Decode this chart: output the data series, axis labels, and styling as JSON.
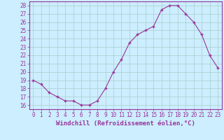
{
  "hours": [
    0,
    1,
    2,
    3,
    4,
    5,
    6,
    7,
    8,
    9,
    10,
    11,
    12,
    13,
    14,
    15,
    16,
    17,
    18,
    19,
    20,
    21,
    22,
    23
  ],
  "values": [
    19,
    18.5,
    17.5,
    17,
    16.5,
    16.5,
    16,
    16,
    16.5,
    18,
    20,
    21.5,
    23.5,
    24.5,
    25,
    25.5,
    27.5,
    28,
    28,
    27,
    26,
    24.5,
    22,
    20.5
  ],
  "line_color": "#993399",
  "marker_color": "#993399",
  "bg_color": "#cceeff",
  "grid_color": "#aacccc",
  "axis_label_color": "#993399",
  "tick_label_color": "#993399",
  "xlabel": "Windchill (Refroidissement éolien,°C)",
  "ylim": [
    15.5,
    28.5
  ],
  "xlim": [
    -0.5,
    23.5
  ],
  "yticks": [
    16,
    17,
    18,
    19,
    20,
    21,
    22,
    23,
    24,
    25,
    26,
    27,
    28
  ],
  "xticks": [
    0,
    1,
    2,
    3,
    4,
    5,
    6,
    7,
    8,
    9,
    10,
    11,
    12,
    13,
    14,
    15,
    16,
    17,
    18,
    19,
    20,
    21,
    22,
    23
  ],
  "tick_fontsize": 5.5,
  "xlabel_fontsize": 6.5
}
